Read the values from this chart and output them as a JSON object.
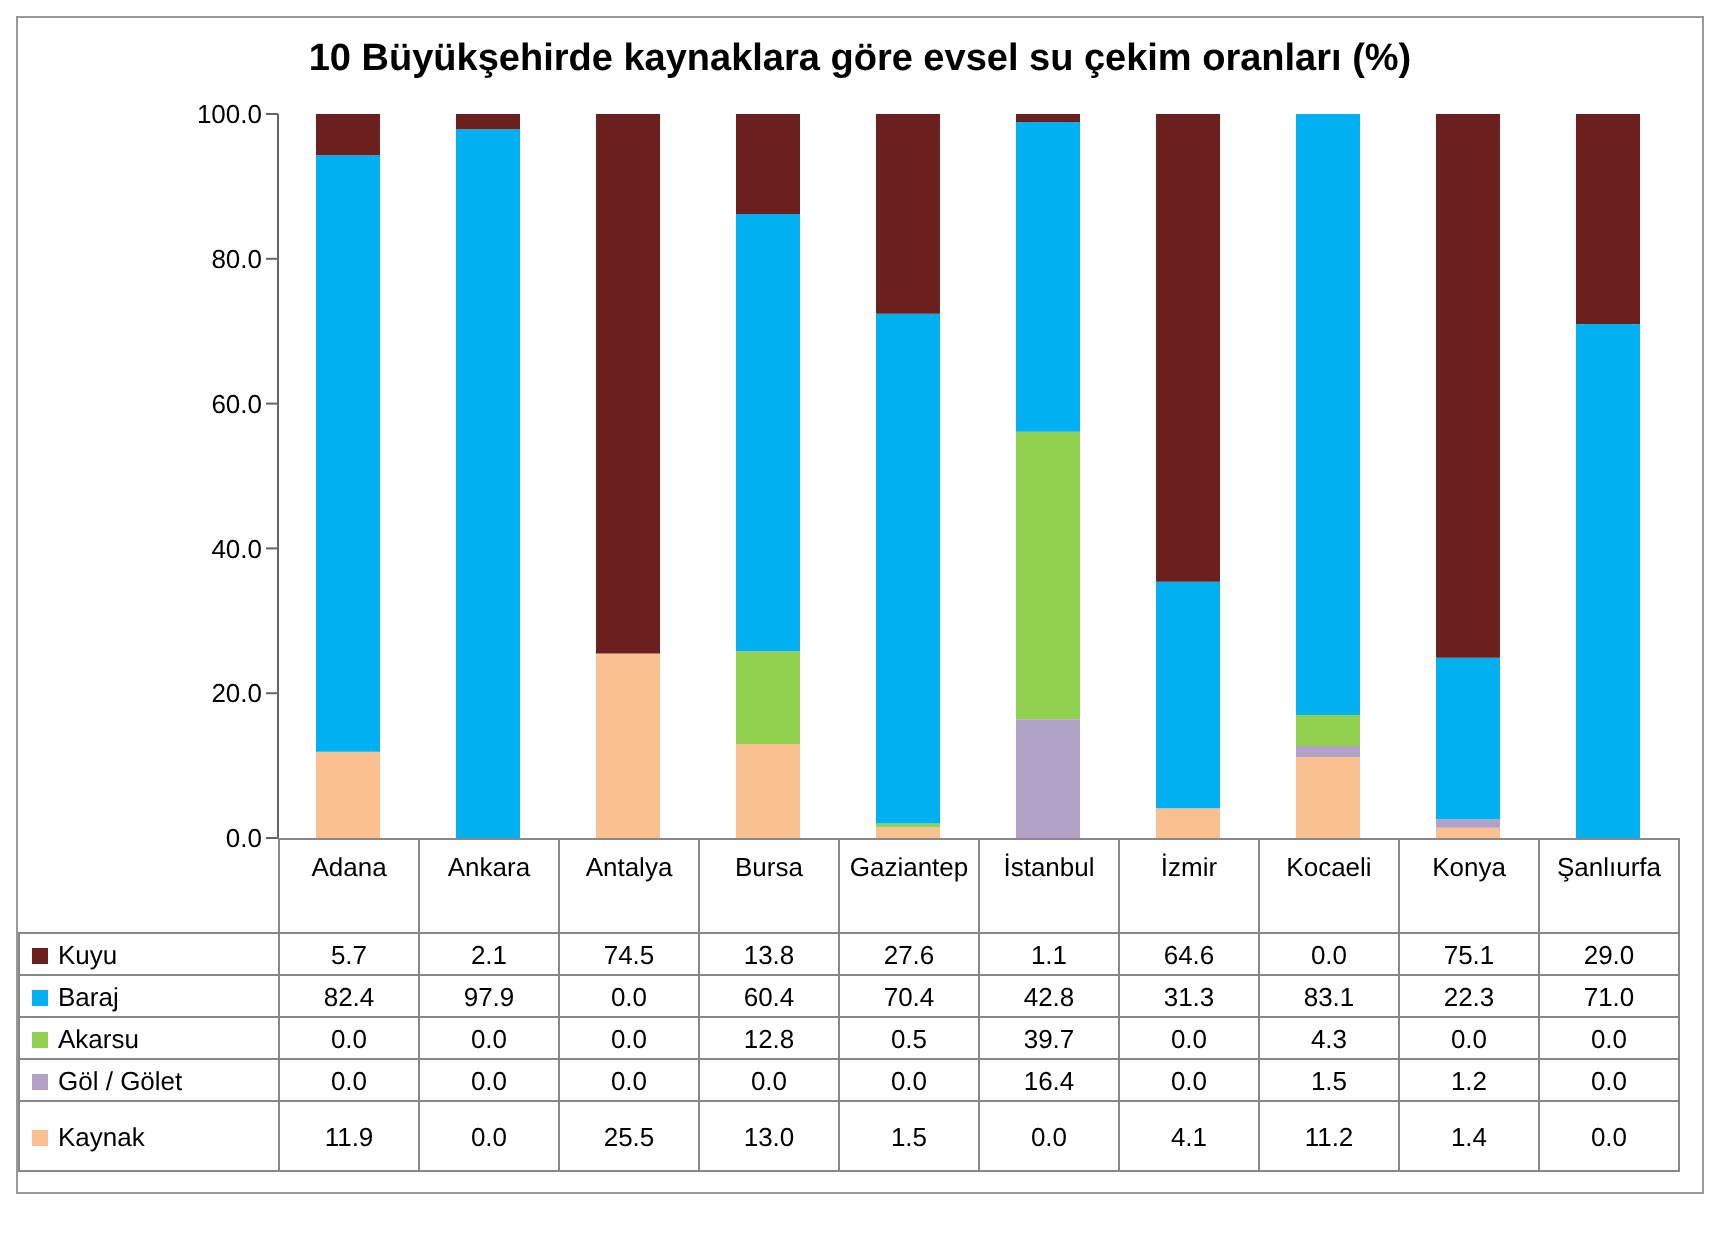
{
  "chart_data": {
    "type": "bar",
    "stacked": true,
    "title": "10 Büyükşehirde kaynaklara göre evsel su çekim oranları (%)",
    "categories": [
      "Adana",
      "Ankara",
      "Antalya",
      "Bursa",
      "Gaziantep",
      "İstanbul",
      "İzmir",
      "Kocaeli",
      "Konya",
      "Şanlıurfa"
    ],
    "series": [
      {
        "name": "Kaynak",
        "color": "#fac090",
        "values": [
          11.9,
          0.0,
          25.5,
          13.0,
          1.5,
          0.0,
          4.1,
          11.2,
          1.4,
          0.0
        ],
        "value_labels": [
          "11.9",
          "0.0",
          "25.5",
          "13.0",
          "1.5",
          "0.0",
          "4.1",
          "11.2",
          "1.4",
          "0.0"
        ]
      },
      {
        "name": "Göl / Gölet",
        "color": "#b3a2c7",
        "values": [
          0.0,
          0.0,
          0.0,
          0.0,
          0.0,
          16.4,
          0.0,
          1.5,
          1.2,
          0.0
        ],
        "value_labels": [
          "0.0",
          "0.0",
          "0.0",
          "0.0",
          "0.0",
          "16.4",
          "0.0",
          "1.5",
          "1.2",
          "0.0"
        ]
      },
      {
        "name": "Akarsu",
        "color": "#92d050",
        "values": [
          0.0,
          0.0,
          0.0,
          12.8,
          0.5,
          39.7,
          0.0,
          4.3,
          0.0,
          0.0
        ],
        "value_labels": [
          "0.0",
          "0.0",
          "0.0",
          "12.8",
          "0.5",
          "39.7",
          "0.0",
          "4.3",
          "0.0",
          "0.0"
        ]
      },
      {
        "name": "Baraj",
        "color": "#00b0f0",
        "values": [
          82.4,
          97.9,
          0.0,
          60.4,
          70.4,
          42.8,
          31.3,
          83.1,
          22.3,
          71.0
        ],
        "value_labels": [
          "82.4",
          "97.9",
          "0.0",
          "60.4",
          "70.4",
          "42.8",
          "31.3",
          "83.1",
          "22.3",
          "71.0"
        ]
      },
      {
        "name": "Kuyu",
        "color": "#6b1f1f",
        "values": [
          5.7,
          2.1,
          74.5,
          13.8,
          27.6,
          1.1,
          64.6,
          0.0,
          75.1,
          29.0
        ],
        "value_labels": [
          "5.7",
          "2.1",
          "74.5",
          "13.8",
          "27.6",
          "1.1",
          "64.6",
          "0.0",
          "75.1",
          "29.0"
        ]
      }
    ],
    "ylim": [
      0,
      100
    ],
    "yticks": [
      {
        "value": 0,
        "label": "0.0"
      },
      {
        "value": 20,
        "label": "20.0"
      },
      {
        "value": 40,
        "label": "40.0"
      },
      {
        "value": 60,
        "label": "60.0"
      },
      {
        "value": 80,
        "label": "80.0"
      },
      {
        "value": 100,
        "label": "100.0"
      }
    ],
    "grid": false,
    "legend": "bottom"
  }
}
